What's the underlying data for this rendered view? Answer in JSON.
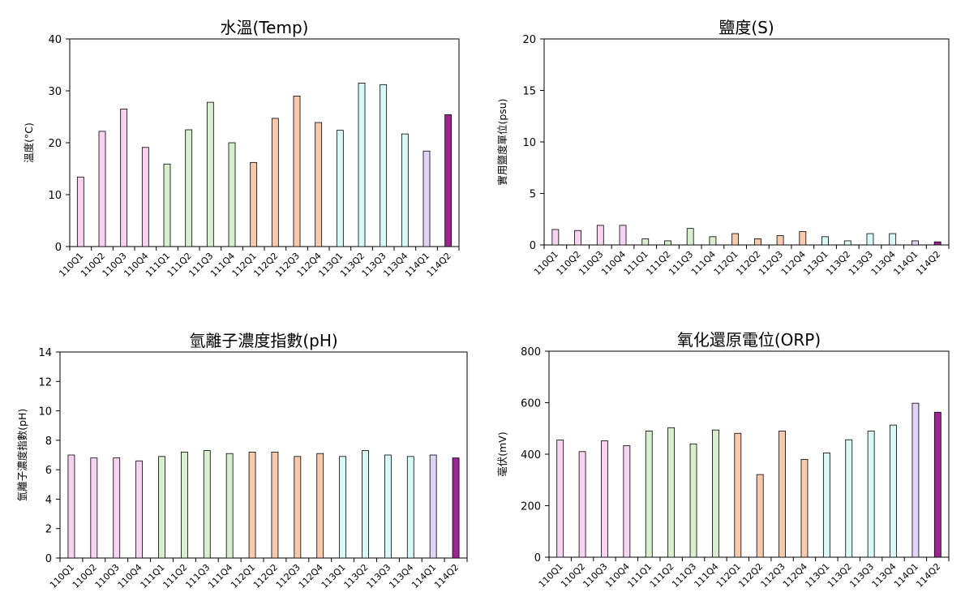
{
  "chart_data": [
    {
      "type": "bar",
      "title": "水溫(Temp)",
      "ylabel": "溫度(°C)",
      "ylim": [
        0,
        40
      ],
      "yticks": [
        0,
        10,
        20,
        30,
        40
      ],
      "categories": [
        "110Q1",
        "110Q2",
        "110Q3",
        "110Q4",
        "111Q1",
        "111Q2",
        "111Q3",
        "111Q4",
        "112Q1",
        "112Q2",
        "112Q3",
        "112Q4",
        "113Q1",
        "113Q2",
        "113Q3",
        "113Q4",
        "114Q1",
        "114Q2"
      ],
      "values": [
        13.4,
        22.2,
        26.5,
        19.1,
        15.9,
        22.5,
        27.8,
        20.0,
        16.2,
        24.7,
        29.0,
        23.9,
        22.4,
        31.5,
        31.2,
        21.7,
        18.4,
        25.4
      ],
      "grid": false
    },
    {
      "type": "bar",
      "title": "鹽度(S)",
      "ylabel": "實用鹽度單位(psu)",
      "ylim": [
        0,
        20
      ],
      "yticks": [
        0,
        5,
        10,
        15,
        20
      ],
      "categories": [
        "110Q1",
        "110Q2",
        "110Q3",
        "110Q4",
        "111Q1",
        "111Q2",
        "111Q3",
        "111Q4",
        "112Q1",
        "112Q2",
        "112Q3",
        "112Q4",
        "113Q1",
        "113Q2",
        "113Q3",
        "113Q4",
        "114Q1",
        "114Q2"
      ],
      "values": [
        1.5,
        1.4,
        1.9,
        1.9,
        0.6,
        0.4,
        1.6,
        0.8,
        1.1,
        0.6,
        0.9,
        1.3,
        0.8,
        0.4,
        1.1,
        1.1,
        0.4,
        0.3
      ],
      "grid": false
    },
    {
      "type": "bar",
      "title": "氫離子濃度指數(pH)",
      "ylabel": "氫離子濃度指數(pH)",
      "ylim": [
        0,
        14
      ],
      "yticks": [
        0,
        2,
        4,
        6,
        8,
        10,
        12,
        14
      ],
      "categories": [
        "110Q1",
        "110Q2",
        "110Q3",
        "110Q4",
        "111Q1",
        "111Q2",
        "111Q3",
        "111Q4",
        "112Q1",
        "112Q2",
        "112Q3",
        "112Q4",
        "113Q1",
        "113Q2",
        "113Q3",
        "113Q4",
        "114Q1",
        "114Q2"
      ],
      "values": [
        7.0,
        6.8,
        6.8,
        6.6,
        6.9,
        7.2,
        7.3,
        7.1,
        7.2,
        7.2,
        6.9,
        7.1,
        6.9,
        7.3,
        7.0,
        6.9,
        7.0,
        6.8
      ],
      "grid": false
    },
    {
      "type": "bar",
      "title": "氧化還原電位(ORP)",
      "ylabel": "毫伏(mV)",
      "ylim": [
        0,
        800
      ],
      "yticks": [
        0,
        200,
        400,
        600,
        800
      ],
      "categories": [
        "110Q1",
        "110Q2",
        "110Q3",
        "110Q4",
        "111Q1",
        "111Q2",
        "111Q3",
        "111Q4",
        "112Q1",
        "112Q2",
        "112Q3",
        "112Q4",
        "113Q1",
        "113Q2",
        "113Q3",
        "113Q4",
        "114Q1",
        "114Q2"
      ],
      "values": [
        455,
        410,
        452,
        433,
        490,
        503,
        440,
        494,
        481,
        321,
        490,
        380,
        405,
        456,
        490,
        513,
        598,
        563
      ],
      "grid": false
    }
  ],
  "colors": {
    "110": "#f7d3f1",
    "111": "#d7efcd",
    "112": "#f7c9ad",
    "113": "#d7f9f8",
    "114Q1": "#e1d3f7",
    "114Q2": "#9b2592",
    "outline": "#000000"
  }
}
